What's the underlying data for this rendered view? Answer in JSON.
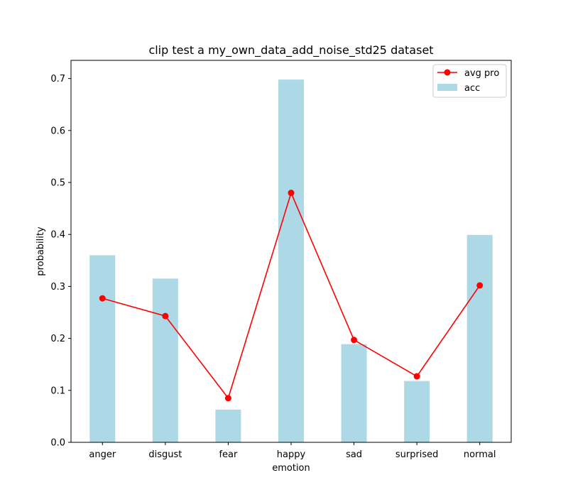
{
  "chart_data": {
    "type": "bar",
    "title": "clip test a my_own_data_add_noise_std25 dataset",
    "xlabel": "emotion",
    "ylabel": "probability",
    "categories": [
      "anger",
      "disgust",
      "fear",
      "happy",
      "sad",
      "surprised",
      "normal"
    ],
    "ylim": [
      0,
      0.735
    ],
    "yticks": [
      "0.0",
      "0.1",
      "0.2",
      "0.3",
      "0.4",
      "0.5",
      "0.6",
      "0.7"
    ],
    "grid": false,
    "legend_position": "top-right",
    "series": [
      {
        "name": "acc",
        "kind": "bar",
        "color": "#add8e6",
        "values": [
          0.36,
          0.315,
          0.063,
          0.698,
          0.189,
          0.118,
          0.399
        ]
      },
      {
        "name": "avg pro",
        "kind": "line",
        "color": "#ff0000",
        "marker": "circle",
        "values": [
          0.277,
          0.243,
          0.085,
          0.48,
          0.197,
          0.127,
          0.302
        ]
      }
    ]
  }
}
